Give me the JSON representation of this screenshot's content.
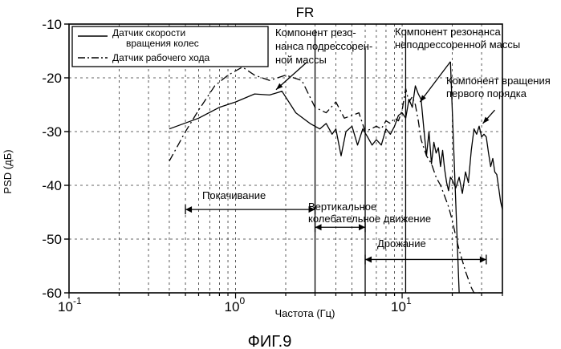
{
  "chart_data": {
    "type": "line",
    "title": "FR",
    "figure_caption": "ФИГ.9",
    "xlabel": "Частота (Гц)",
    "ylabel": "PSD (дБ)",
    "x_scale": "log",
    "xlim": [
      0.1,
      40
    ],
    "ylim": [
      -60,
      -10
    ],
    "x_ticks": [
      "10",
      "10",
      "10"
    ],
    "x_tick_exponents": [
      "-1",
      "0",
      "1"
    ],
    "x_tick_values": [
      0.1,
      1,
      10
    ],
    "y_ticks": [
      "-10",
      "-20",
      "-30",
      "-40",
      "-50",
      "-60"
    ],
    "y_tick_values": [
      -10,
      -20,
      -30,
      -40,
      -50,
      -60
    ],
    "grid": true,
    "legend_position": "top-left",
    "series": [
      {
        "name": "Датчик скорости вращения колес",
        "name_lines": [
          "Датчик скорости",
          "вращения колес"
        ],
        "style": "solid",
        "x": [
          0.4,
          0.6,
          0.8,
          1.0,
          1.3,
          1.6,
          1.9,
          2.3,
          2.8,
          3.2,
          3.5,
          3.8,
          4.0,
          4.3,
          4.6,
          5.0,
          5.4,
          5.8,
          6.2,
          6.6,
          7.0,
          7.5,
          8.0,
          8.5,
          9.0,
          9.5,
          10.0,
          10.5,
          11.0,
          11.5,
          12.0,
          12.5,
          13.0,
          13.5,
          14.0,
          14.5,
          15.0,
          15.5,
          16.0,
          16.5,
          17.0,
          17.5,
          18.0,
          18.5,
          19.0,
          19.5,
          20.0,
          21.0,
          22.0,
          23.0,
          24.0,
          25.0,
          26.0,
          27.0,
          28.0,
          29.0,
          30.0,
          31.0,
          32.0,
          33.0,
          34.0,
          35.0,
          36.0,
          37.0,
          38.0,
          39.0,
          40.0
        ],
        "y": [
          -29.5,
          -27.5,
          -25.5,
          -24.5,
          -23.0,
          -23.2,
          -22.5,
          -26.5,
          -28.5,
          -29.5,
          -28.5,
          -30.5,
          -29.5,
          -34.5,
          -30.0,
          -29.0,
          -32.5,
          -29.5,
          -31.0,
          -32.5,
          -31.5,
          -32.5,
          -29.5,
          -30.5,
          -29.0,
          -27.0,
          -26.5,
          -27.5,
          -24.0,
          -25.5,
          -21.5,
          -23.0,
          -24.0,
          -29.5,
          -34.5,
          -30.0,
          -36.0,
          -32.0,
          -34.0,
          -33.0,
          -36.5,
          -33.5,
          -37.0,
          -39.5,
          -41.0,
          -38.5,
          -39.0,
          -40.5,
          -38.5,
          -41.5,
          -37.5,
          -39.5,
          -33.5,
          -29.5,
          -30.5,
          -29.0,
          -31.0,
          -30.5,
          -31.0,
          -34.0,
          -36.5,
          -35.0,
          -37.5,
          -38.0,
          -40.5,
          -43.0,
          -44.5
        ]
      },
      {
        "name": "Датчик рабочего хода",
        "style": "dash-dot",
        "x": [
          0.4,
          0.5,
          0.6,
          0.75,
          0.9,
          1.1,
          1.3,
          1.6,
          2.0,
          2.5,
          3.0,
          3.5,
          4.0,
          4.5,
          5.0,
          5.5,
          6.0,
          6.5,
          7.0,
          7.5,
          8.0,
          8.5,
          9.0,
          9.5,
          10.0,
          10.5,
          11.0,
          11.5,
          12.0,
          12.5,
          13.0,
          14.0,
          15.0,
          16.0,
          17.0,
          18.0,
          19.0,
          20.0,
          21.0,
          22.0,
          23.0,
          24.0,
          25.0,
          26.0,
          27.0,
          28.0,
          29.0,
          30.0
        ],
        "y": [
          -35.5,
          -30.0,
          -26.0,
          -21.5,
          -19.5,
          -18.0,
          -19.5,
          -20.5,
          -19.5,
          -20.5,
          -25.5,
          -26.5,
          -24.5,
          -27.5,
          -27.0,
          -26.5,
          -30.0,
          -29.5,
          -29.0,
          -29.5,
          -28.0,
          -28.5,
          -27.5,
          -28.0,
          -26.0,
          -22.0,
          -24.5,
          -23.5,
          -25.0,
          -28.0,
          -31.5,
          -34.5,
          -36.0,
          -38.5,
          -40.0,
          -42.0,
          -44.0,
          -46.5,
          -49.5,
          -52.0,
          -54.0,
          -56.0,
          -57.5,
          -59.0,
          -60.0,
          -60.0,
          -60.0,
          -60.0
        ]
      }
    ],
    "annotations": {
      "sprung_mass": [
        "Компонент резо-",
        "нанса подрессорен-",
        "ной массы"
      ],
      "unsprung_mass": [
        "Компонент резонанса",
        "неподрессоренной массы"
      ],
      "first_order": [
        "Компонент вращения",
        "первого порядка"
      ],
      "rolling": "Покачивание",
      "vertical": [
        "Вертикальное",
        "колебательное движение"
      ],
      "jitter": "Дрожание"
    }
  }
}
